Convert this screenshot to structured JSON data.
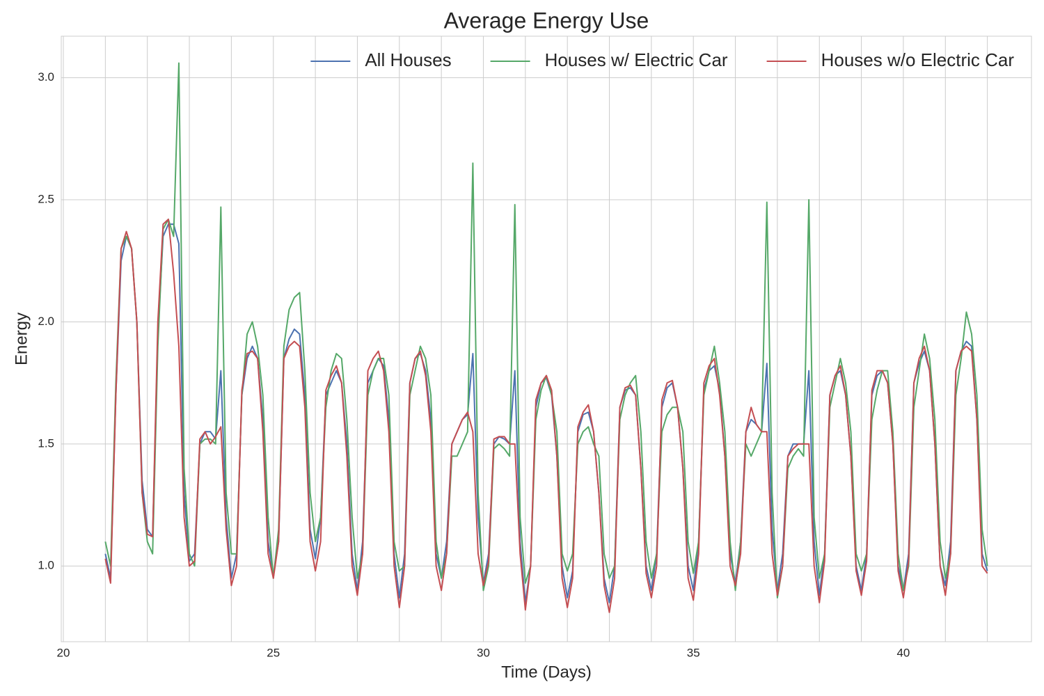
{
  "chart_data": {
    "type": "line",
    "title": "Average Energy Use",
    "x_label": "Time (Days)",
    "y_label": "Energy",
    "x": [
      21,
      21.125,
      21.25,
      21.375,
      21.5,
      21.625,
      21.75,
      21.875,
      22,
      22.125,
      22.25,
      22.375,
      22.5,
      22.625,
      22.75,
      22.875,
      23,
      23.125,
      23.25,
      23.375,
      23.5,
      23.625,
      23.75,
      23.875,
      24,
      24.125,
      24.25,
      24.375,
      24.5,
      24.625,
      24.75,
      24.875,
      25,
      25.125,
      25.25,
      25.375,
      25.5,
      25.625,
      25.75,
      25.875,
      26,
      26.125,
      26.25,
      26.375,
      26.5,
      26.625,
      26.75,
      26.875,
      27,
      27.125,
      27.25,
      27.375,
      27.5,
      27.625,
      27.75,
      27.875,
      28,
      28.125,
      28.25,
      28.375,
      28.5,
      28.625,
      28.75,
      28.875,
      29,
      29.125,
      29.25,
      29.375,
      29.5,
      29.625,
      29.75,
      29.875,
      30,
      30.125,
      30.25,
      30.375,
      30.5,
      30.625,
      30.75,
      30.875,
      31,
      31.125,
      31.25,
      31.375,
      31.5,
      31.625,
      31.75,
      31.875,
      32,
      32.125,
      32.25,
      32.375,
      32.5,
      32.625,
      32.75,
      32.875,
      33,
      33.125,
      33.25,
      33.375,
      33.5,
      33.625,
      33.75,
      33.875,
      34,
      34.125,
      34.25,
      34.375,
      34.5,
      34.625,
      34.75,
      34.875,
      35,
      35.125,
      35.25,
      35.375,
      35.5,
      35.625,
      35.75,
      35.875,
      36,
      36.125,
      36.25,
      36.375,
      36.5,
      36.625,
      36.75,
      36.875,
      37,
      37.125,
      37.25,
      37.375,
      37.5,
      37.625,
      37.75,
      37.875,
      38,
      38.125,
      38.25,
      38.375,
      38.5,
      38.625,
      38.75,
      38.875,
      39,
      39.125,
      39.25,
      39.375,
      39.5,
      39.625,
      39.75,
      39.875,
      40,
      40.125,
      40.25,
      40.375,
      40.5,
      40.625,
      40.75,
      40.875,
      41,
      41.125,
      41.25,
      41.375,
      41.5,
      41.625,
      41.75,
      41.875,
      42
    ],
    "series": [
      {
        "name": "All Houses",
        "color": "#4c72b0",
        "values": [
          1.05,
          0.95,
          1.7,
          2.25,
          2.35,
          2.3,
          2.0,
          1.35,
          1.15,
          1.12,
          1.95,
          2.35,
          2.4,
          2.4,
          2.32,
          1.3,
          1.02,
          1.05,
          1.5,
          1.55,
          1.55,
          1.52,
          1.8,
          1.2,
          0.95,
          1.05,
          1.7,
          1.85,
          1.9,
          1.85,
          1.6,
          1.1,
          0.96,
          1.1,
          1.85,
          1.93,
          1.97,
          1.95,
          1.7,
          1.15,
          1.03,
          1.2,
          1.7,
          1.75,
          1.8,
          1.75,
          1.5,
          1.05,
          0.9,
          1.1,
          1.75,
          1.8,
          1.85,
          1.82,
          1.6,
          1.05,
          0.87,
          1.05,
          1.75,
          1.85,
          1.87,
          1.8,
          1.6,
          1.05,
          0.95,
          1.1,
          1.5,
          1.55,
          1.6,
          1.62,
          1.87,
          1.2,
          0.93,
          1.05,
          1.5,
          1.53,
          1.52,
          1.5,
          1.8,
          1.1,
          0.85,
          1.0,
          1.65,
          1.75,
          1.77,
          1.7,
          1.45,
          1.0,
          0.87,
          0.98,
          1.55,
          1.62,
          1.63,
          1.55,
          1.3,
          0.95,
          0.85,
          1.0,
          1.65,
          1.72,
          1.73,
          1.7,
          1.4,
          1.0,
          0.9,
          1.05,
          1.65,
          1.73,
          1.75,
          1.65,
          1.4,
          1.0,
          0.9,
          1.1,
          1.72,
          1.8,
          1.82,
          1.72,
          1.45,
          1.05,
          0.93,
          1.1,
          1.55,
          1.6,
          1.58,
          1.55,
          1.83,
          1.15,
          0.9,
          1.05,
          1.45,
          1.5,
          1.5,
          1.5,
          1.8,
          1.1,
          0.88,
          1.05,
          1.7,
          1.78,
          1.8,
          1.7,
          1.45,
          1.0,
          0.9,
          1.05,
          1.7,
          1.78,
          1.8,
          1.75,
          1.5,
          1.0,
          0.9,
          1.05,
          1.75,
          1.83,
          1.88,
          1.8,
          1.5,
          1.0,
          0.92,
          1.1,
          1.8,
          1.88,
          1.92,
          1.9,
          1.6,
          1.05,
          0.98
        ]
      },
      {
        "name": "Houses w/ Electric Car",
        "color": "#55a868",
        "values": [
          1.1,
          1.0,
          1.75,
          2.3,
          2.35,
          2.3,
          2.0,
          1.3,
          1.1,
          1.05,
          1.9,
          2.38,
          2.42,
          2.35,
          3.06,
          1.4,
          1.05,
          1.0,
          1.5,
          1.52,
          1.52,
          1.5,
          2.47,
          1.3,
          1.05,
          1.05,
          1.7,
          1.95,
          2.0,
          1.9,
          1.7,
          1.2,
          0.95,
          1.15,
          1.9,
          2.05,
          2.1,
          2.12,
          1.8,
          1.3,
          1.1,
          1.2,
          1.65,
          1.8,
          1.87,
          1.85,
          1.6,
          1.2,
          0.95,
          1.05,
          1.7,
          1.8,
          1.85,
          1.85,
          1.7,
          1.1,
          0.98,
          1.0,
          1.7,
          1.8,
          1.9,
          1.85,
          1.7,
          1.1,
          0.95,
          1.05,
          1.45,
          1.45,
          1.5,
          1.55,
          2.65,
          1.3,
          0.9,
          1.0,
          1.48,
          1.5,
          1.48,
          1.45,
          2.48,
          1.2,
          0.93,
          1.0,
          1.6,
          1.72,
          1.78,
          1.7,
          1.55,
          1.05,
          0.98,
          1.05,
          1.5,
          1.55,
          1.57,
          1.5,
          1.45,
          1.05,
          0.95,
          1.0,
          1.6,
          1.7,
          1.75,
          1.78,
          1.55,
          1.1,
          0.95,
          1.05,
          1.55,
          1.62,
          1.65,
          1.65,
          1.55,
          1.1,
          0.97,
          1.1,
          1.7,
          1.8,
          1.9,
          1.75,
          1.55,
          1.1,
          0.9,
          1.1,
          1.5,
          1.45,
          1.5,
          1.55,
          2.49,
          1.3,
          0.87,
          1.0,
          1.4,
          1.45,
          1.48,
          1.45,
          2.5,
          1.2,
          0.95,
          1.05,
          1.65,
          1.75,
          1.85,
          1.75,
          1.55,
          1.05,
          0.98,
          1.05,
          1.6,
          1.72,
          1.8,
          1.8,
          1.55,
          1.05,
          0.9,
          1.0,
          1.65,
          1.8,
          1.95,
          1.85,
          1.6,
          1.1,
          0.95,
          1.05,
          1.7,
          1.85,
          2.04,
          1.95,
          1.7,
          1.15,
          1.0
        ]
      },
      {
        "name": "Houses w/o Electric Car",
        "color": "#c44e52",
        "values": [
          1.03,
          0.93,
          1.7,
          2.3,
          2.37,
          2.3,
          2.0,
          1.3,
          1.13,
          1.12,
          2.0,
          2.4,
          2.42,
          2.2,
          1.9,
          1.2,
          1.0,
          1.02,
          1.52,
          1.55,
          1.5,
          1.53,
          1.57,
          1.15,
          0.92,
          1.0,
          1.72,
          1.87,
          1.88,
          1.85,
          1.55,
          1.05,
          0.95,
          1.1,
          1.85,
          1.9,
          1.92,
          1.9,
          1.65,
          1.1,
          0.98,
          1.1,
          1.72,
          1.78,
          1.82,
          1.75,
          1.45,
          1.0,
          0.88,
          1.05,
          1.8,
          1.85,
          1.88,
          1.8,
          1.55,
          1.0,
          0.83,
          1.0,
          1.75,
          1.85,
          1.88,
          1.78,
          1.55,
          1.0,
          0.9,
          1.05,
          1.5,
          1.55,
          1.6,
          1.63,
          1.55,
          1.05,
          0.92,
          1.02,
          1.52,
          1.53,
          1.53,
          1.5,
          1.5,
          1.05,
          0.82,
          1.0,
          1.68,
          1.75,
          1.78,
          1.72,
          1.45,
          0.95,
          0.83,
          0.95,
          1.57,
          1.63,
          1.66,
          1.55,
          1.3,
          0.92,
          0.81,
          0.95,
          1.65,
          1.73,
          1.74,
          1.7,
          1.4,
          0.97,
          0.87,
          1.0,
          1.68,
          1.75,
          1.76,
          1.65,
          1.4,
          0.95,
          0.86,
          1.05,
          1.75,
          1.82,
          1.85,
          1.7,
          1.45,
          1.0,
          0.92,
          1.05,
          1.55,
          1.65,
          1.58,
          1.55,
          1.55,
          1.05,
          0.88,
          1.0,
          1.45,
          1.48,
          1.5,
          1.5,
          1.5,
          1.0,
          0.85,
          1.02,
          1.7,
          1.78,
          1.82,
          1.7,
          1.45,
          0.98,
          0.88,
          1.02,
          1.72,
          1.8,
          1.8,
          1.75,
          1.5,
          0.98,
          0.87,
          1.02,
          1.75,
          1.85,
          1.9,
          1.8,
          1.5,
          1.0,
          0.88,
          1.05,
          1.8,
          1.88,
          1.9,
          1.88,
          1.6,
          1.0,
          0.97
        ]
      }
    ],
    "xlim": [
      19.95,
      43.05
    ],
    "ylim": [
      0.69,
      3.17
    ],
    "xticks": [
      20,
      25,
      30,
      35,
      40
    ],
    "xminorticks": [
      21,
      22,
      23,
      24,
      26,
      27,
      28,
      29,
      31,
      32,
      33,
      34,
      36,
      37,
      38,
      39,
      41,
      42
    ],
    "yticks": [
      {
        "value": 1,
        "label": "1.0"
      },
      1.5,
      {
        "value": 2,
        "label": "2.0"
      },
      2.5,
      {
        "value": 3,
        "label": "3.0"
      }
    ],
    "grid": true,
    "legend": "upper right"
  }
}
